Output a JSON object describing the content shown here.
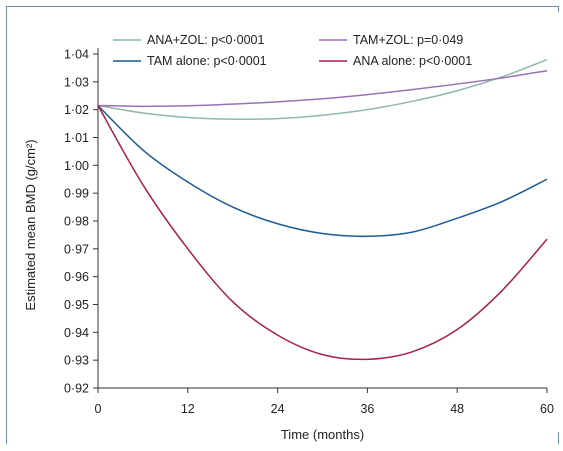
{
  "chart_data": {
    "type": "line",
    "title": "",
    "xlabel": "Time (months)",
    "ylabel": "Estimated mean BMD (g/cm²)",
    "xlim": [
      0,
      60
    ],
    "ylim": [
      0.92,
      1.04
    ],
    "x_ticks": [
      0,
      12,
      24,
      36,
      48,
      60
    ],
    "x_tick_labels": [
      "0",
      "12",
      "24",
      "36",
      "48",
      "60"
    ],
    "y_ticks": [
      0.92,
      0.93,
      0.94,
      0.95,
      0.96,
      0.97,
      0.98,
      0.99,
      1.0,
      1.01,
      1.02,
      1.03,
      1.04
    ],
    "y_tick_labels": [
      "0·92",
      "0·93",
      "0·94",
      "0·95",
      "0·96",
      "0·97",
      "0·98",
      "0·99",
      "1·00",
      "1·01",
      "1·02",
      "1·03",
      "1·04"
    ],
    "grid": false,
    "legend_position": "top",
    "series": [
      {
        "name": "ANA+ZOL: p<0·0001",
        "color": "#8fb8a8",
        "x": [
          0,
          6,
          12,
          18,
          24,
          30,
          36,
          42,
          48,
          54,
          60
        ],
        "y": [
          1.0215,
          1.0188,
          1.0172,
          1.0166,
          1.0168,
          1.018,
          1.02,
          1.023,
          1.0268,
          1.0318,
          1.038
        ]
      },
      {
        "name": "TAM+ZOL: p=0·049",
        "color": "#9a6fb6",
        "x": [
          0,
          6,
          12,
          18,
          24,
          30,
          36,
          42,
          48,
          54,
          60
        ],
        "y": [
          1.0215,
          1.0212,
          1.0214,
          1.022,
          1.0228,
          1.0239,
          1.0254,
          1.0272,
          1.0292,
          1.0314,
          1.034
        ]
      },
      {
        "name": "TAM alone: p<0·0001",
        "color": "#1f5a94",
        "x": [
          0,
          6,
          12,
          18,
          24,
          30,
          36,
          42,
          48,
          54,
          60
        ],
        "y": [
          1.0215,
          1.0055,
          0.994,
          0.985,
          0.979,
          0.9755,
          0.9745,
          0.976,
          0.981,
          0.987,
          0.995
        ]
      },
      {
        "name": "ANA alone: p<0·0001",
        "color": "#a8204a",
        "x": [
          0,
          6,
          12,
          18,
          24,
          30,
          36,
          42,
          48,
          54,
          60
        ],
        "y": [
          1.0215,
          0.993,
          0.97,
          0.951,
          0.939,
          0.932,
          0.9303,
          0.933,
          0.941,
          0.955,
          0.9735
        ]
      }
    ]
  }
}
